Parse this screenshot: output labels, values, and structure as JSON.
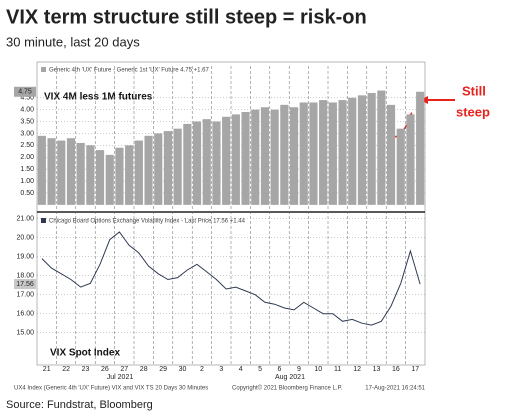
{
  "title": "VIX term structure still steep = risk-on",
  "subtitle": "30 minute, last 20 days",
  "source": "Source: Fundstrat, Bloomberg",
  "footer": [
    "UX4 Index (Generic 4th 'UX' Future) VIX and VIX TS 20 Days 30 Minutes",
    "Copyright© 2021 Bloomberg Finance L.P.",
    "17-Aug-2021 16:24:51"
  ],
  "month_labels": [
    "Jul 2021",
    "Aug 2021"
  ],
  "chart_data": [
    {
      "type": "bar",
      "annotation": "VIX 4M less 1M futures",
      "callout": [
        "Still",
        "steep"
      ],
      "last_price": 4.75,
      "series": [
        {
          "name": "Generic 4th 'UX' Future - Generic 1st 'UX' Future 4.75 +1.67",
          "color": "#a6a6a6",
          "values": [
            2.9,
            2.8,
            2.7,
            2.8,
            2.6,
            2.5,
            2.3,
            2.1,
            2.4,
            2.5,
            2.7,
            2.9,
            3.0,
            3.1,
            3.2,
            3.4,
            3.5,
            3.6,
            3.5,
            3.7,
            3.8,
            3.9,
            4.0,
            4.1,
            4.0,
            4.2,
            4.1,
            4.3,
            4.3,
            4.4,
            4.3,
            4.4,
            4.5,
            4.6,
            4.7,
            4.8,
            4.2,
            3.2,
            3.8,
            4.75
          ]
        }
      ],
      "ylim": [
        -0.3,
        6.0
      ],
      "yticks": [
        {
          "value": 0.5,
          "label": "0.50"
        },
        {
          "value": 1,
          "label": "1.00"
        },
        {
          "value": 1.5,
          "label": "1.50"
        },
        {
          "value": 2,
          "label": "2.00"
        },
        {
          "value": 2.5,
          "label": "2.50"
        },
        {
          "value": 3,
          "label": "3.00"
        },
        {
          "value": 3.5,
          "label": "3.50"
        },
        {
          "value": 4,
          "label": "4.00"
        },
        {
          "value": 4.5,
          "label": "4.50"
        }
      ],
      "grid": true
    },
    {
      "type": "line",
      "annotation": "VIX Spot Index",
      "last_price": 17.56,
      "categories": [
        "21",
        null,
        "22",
        null,
        "23",
        null,
        "26",
        null,
        "27",
        null,
        "28",
        null,
        "29",
        null,
        "30",
        null,
        "2",
        null,
        "3",
        null,
        "4",
        null,
        "5",
        null,
        "6",
        null,
        "9",
        null,
        "10",
        null,
        "11",
        null,
        "12",
        null,
        "13",
        null,
        "16",
        null,
        "17",
        null
      ],
      "series": [
        {
          "name": "Chicago Board Options Exchange Volatility Index - Last Price 17.56 +1.44",
          "color": "#2f3a52",
          "values": [
            18.9,
            18.4,
            18.1,
            17.8,
            17.4,
            17.6,
            18.6,
            19.9,
            20.3,
            19.6,
            19.2,
            18.5,
            18.1,
            17.8,
            17.9,
            18.3,
            18.6,
            18.2,
            17.8,
            17.3,
            17.4,
            17.2,
            17.0,
            16.6,
            16.5,
            16.3,
            16.2,
            16.6,
            16.3,
            16.0,
            16.0,
            15.6,
            15.7,
            15.5,
            15.4,
            15.6,
            16.4,
            17.6,
            19.3,
            17.56
          ]
        }
      ],
      "ylim": [
        13.3,
        21.3
      ],
      "yticks": [
        {
          "value": 15,
          "label": "15.00"
        },
        {
          "value": 16,
          "label": "16.00"
        },
        {
          "value": 17,
          "label": "17.00"
        },
        {
          "value": 18,
          "label": "18.00"
        },
        {
          "value": 19,
          "label": "19.00"
        },
        {
          "value": 20,
          "label": "20.00"
        },
        {
          "value": 21,
          "label": "21.00"
        }
      ],
      "grid": true
    }
  ]
}
